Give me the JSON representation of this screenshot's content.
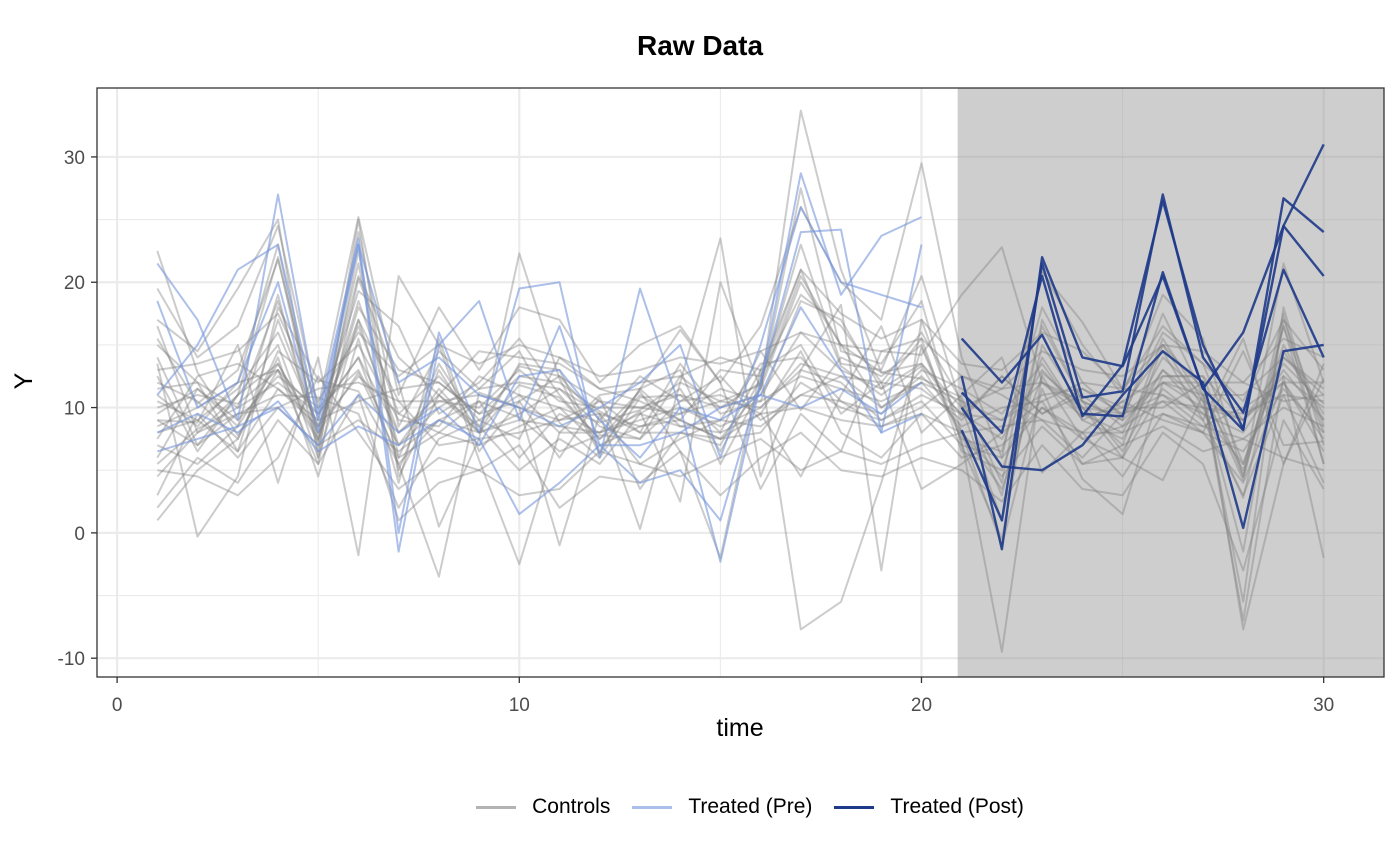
{
  "chart_data": {
    "type": "line",
    "title": "Raw Data",
    "xlabel": "time",
    "ylabel": "Y",
    "xlim": [
      -0.5,
      31.5
    ],
    "ylim": [
      -11.5,
      35.5
    ],
    "x_ticks": [
      0,
      10,
      20,
      30
    ],
    "x_tick_labels": [
      "0",
      "10",
      "20",
      "30"
    ],
    "y_ticks": [
      -10,
      0,
      10,
      20,
      30
    ],
    "y_tick_labels": [
      "-10",
      "0",
      "10",
      "20",
      "30"
    ],
    "grid": true,
    "shaded_region": {
      "x_start": 20.9,
      "x_end": 31.5,
      "color": "#cecece"
    },
    "legend": {
      "position": "bottom",
      "items": [
        {
          "label": "Controls",
          "color": "#b3b3b3"
        },
        {
          "label": "Treated (Pre)",
          "color": "#a9c0ec"
        },
        {
          "label": "Treated (Post)",
          "color": "#1e3a8a"
        }
      ]
    },
    "colors": {
      "control": "#808080",
      "treated_pre": "#7796dc",
      "treated_post": "#1e3a8a"
    },
    "x": [
      1,
      2,
      3,
      4,
      5,
      6,
      7,
      8,
      9,
      10,
      11,
      12,
      13,
      14,
      15,
      16,
      17,
      18,
      19,
      20,
      21,
      22,
      23,
      24,
      25,
      26,
      27,
      28,
      29,
      30
    ],
    "treatment_start": 21,
    "treated_units": [
      [
        21.5,
        17.0,
        9.0,
        27.0,
        9.5,
        23.5,
        0.0,
        16.0,
        8.0,
        19.5,
        20.0,
        6.0,
        19.5,
        10.0,
        -2.3,
        12.0,
        24.0,
        24.2,
        8.0,
        23.0,
        15.5,
        12.0,
        15.8,
        9.5,
        9.3,
        20.8,
        11.5,
        8.2,
        26.7,
        24.0
      ],
      [
        18.5,
        10.0,
        12.0,
        20.0,
        8.0,
        23.0,
        -1.5,
        15.0,
        18.5,
        9.0,
        16.5,
        7.0,
        4.0,
        5.0,
        1.0,
        12.0,
        28.7,
        19.0,
        23.7,
        25.2,
        11.2,
        8.0,
        20.5,
        9.3,
        13.4,
        26.5,
        15.0,
        8.3,
        24.5,
        20.5
      ],
      [
        11.0,
        15.0,
        21.0,
        23.0,
        9.0,
        23.0,
        12.0,
        14.0,
        11.0,
        10.0,
        8.5,
        10.0,
        12.0,
        15.0,
        6.0,
        15.0,
        26.0,
        20.0,
        19.0,
        18.0,
        8.2,
        1.0,
        21.5,
        10.8,
        11.3,
        27.0,
        14.0,
        9.6,
        21.0,
        14.0
      ],
      [
        8.0,
        9.5,
        8.0,
        10.5,
        6.5,
        8.5,
        7.0,
        9.0,
        7.5,
        1.5,
        4.0,
        7.0,
        7.0,
        8.0,
        10.0,
        11.0,
        18.0,
        13.0,
        8.0,
        9.5,
        10.0,
        5.3,
        5.0,
        7.0,
        11.0,
        14.5,
        12.0,
        0.4,
        14.5,
        15.0
      ],
      [
        6.5,
        7.5,
        8.5,
        10.0,
        7.0,
        11.0,
        8.0,
        10.0,
        7.0,
        12.5,
        13.0,
        9.0,
        6.0,
        10.0,
        9.0,
        11.0,
        10.0,
        11.5,
        9.5,
        12.0,
        12.5,
        -1.3,
        22.0,
        14.0,
        13.3,
        20.5,
        11.5,
        16.0,
        24.5,
        31.0
      ]
    ],
    "control_units": [
      [
        22.5,
        12.8,
        7.8,
        13.0,
        5.5,
        20.3,
        12.0,
        0.5,
        7.5,
        22.3,
        12.3,
        6.3,
        11.5,
        16.2,
        12.0,
        3.5,
        9.5,
        6.5,
        14.5,
        14.2,
        19.0,
        22.8,
        12.0,
        9.3,
        10.0,
        14.5,
        9.0,
        15.5,
        5.5,
        13.5
      ],
      [
        17.0,
        14.5,
        19.5,
        25.0,
        6.0,
        25.0,
        4.5,
        11.0,
        8.0,
        11.8,
        10.8,
        7.5,
        9.7,
        2.5,
        20.0,
        11.5,
        33.7,
        21.0,
        12.8,
        12.3,
        10.8,
        4.0,
        20.8,
        16.8,
        11.5,
        15.0,
        10.0,
        2.8,
        16.5,
        5.5
      ],
      [
        13.5,
        -0.3,
        4.5,
        18.0,
        12.2,
        11.3,
        5.5,
        -3.5,
        11.2,
        10.0,
        -1.0,
        9.5,
        0.3,
        12.0,
        23.5,
        4.5,
        13.0,
        18.2,
        -3.0,
        17.0,
        8.0,
        -1.0,
        11.5,
        4.3,
        1.5,
        12.0,
        12.0,
        -7.7,
        5.5,
        12.3
      ],
      [
        9.0,
        8.8,
        15.0,
        4.0,
        14.0,
        -1.8,
        20.5,
        15.0,
        5.8,
        -2.5,
        8.0,
        8.0,
        11.3,
        6.5,
        -2.0,
        13.0,
        -7.7,
        -5.5,
        4.0,
        14.8,
        7.3,
        -9.5,
        12.8,
        10.0,
        6.0,
        4.2,
        11.0,
        -7.0,
        12.5,
        -2.0
      ],
      [
        12.5,
        6.5,
        11.0,
        13.5,
        8.0,
        12.8,
        6.0,
        8.0,
        10.5,
        9.2,
        6.5,
        7.8,
        7.5,
        10.5,
        11.0,
        9.5,
        14.5,
        8.0,
        6.0,
        9.5,
        6.0,
        7.0,
        10.0,
        8.0,
        4.5,
        9.5,
        8.0,
        4.0,
        12.0,
        6.5
      ],
      [
        10.0,
        11.0,
        10.3,
        13.0,
        7.3,
        18.0,
        13.0,
        12.0,
        9.5,
        12.5,
        12.0,
        9.7,
        8.0,
        8.0,
        7.5,
        11.5,
        20.0,
        15.0,
        12.8,
        13.5,
        9.3,
        12.5,
        9.5,
        11.0,
        8.5,
        13.0,
        10.5,
        9.0,
        13.5,
        10.3
      ],
      [
        7.0,
        5.5,
        8.5,
        19.0,
        6.5,
        22.5,
        6.0,
        13.5,
        8.5,
        5.0,
        7.5,
        5.5,
        9.5,
        11.5,
        6.5,
        12.3,
        21.0,
        13.3,
        11.0,
        13.3,
        8.0,
        3.5,
        12.5,
        7.5,
        6.0,
        15.0,
        11.5,
        4.2,
        17.5,
        5.5
      ],
      [
        15.5,
        10.3,
        13.0,
        21.8,
        9.0,
        19.3,
        16.5,
        9.5,
        11.5,
        14.5,
        8.8,
        6.0,
        10.8,
        11.0,
        8.0,
        14.5,
        9.8,
        14.0,
        12.5,
        15.0,
        7.5,
        6.5,
        18.0,
        12.0,
        9.3,
        16.0,
        13.5,
        5.5,
        14.0,
        11.0
      ],
      [
        4.5,
        8.0,
        9.5,
        11.0,
        10.8,
        9.5,
        2.0,
        7.5,
        9.0,
        7.5,
        14.0,
        11.5,
        10.5,
        9.0,
        7.5,
        9.5,
        4.5,
        11.0,
        16.5,
        8.0,
        11.0,
        14.0,
        4.8,
        8.0,
        10.5,
        9.0,
        8.0,
        14.5,
        7.0,
        7.3
      ],
      [
        11.5,
        12.0,
        6.5,
        17.0,
        8.5,
        16.5,
        8.0,
        11.0,
        8.5,
        13.3,
        12.5,
        10.5,
        8.0,
        13.5,
        9.5,
        10.5,
        18.5,
        17.0,
        11.5,
        15.5,
        6.5,
        5.0,
        14.0,
        9.0,
        7.5,
        13.0,
        9.5,
        5.5,
        15.0,
        9.0
      ],
      [
        1.0,
        5.0,
        7.5,
        14.0,
        4.5,
        15.5,
        4.0,
        15.5,
        6.5,
        10.5,
        6.0,
        10.8,
        3.5,
        8.0,
        7.0,
        13.0,
        15.0,
        9.5,
        12.0,
        3.5,
        5.5,
        8.0,
        10.5,
        5.5,
        6.0,
        11.5,
        9.0,
        3.0,
        11.0,
        4.0
      ],
      [
        9.5,
        11.5,
        8.5,
        13.5,
        7.5,
        18.5,
        9.5,
        12.5,
        9.0,
        11.0,
        10.0,
        8.8,
        9.8,
        12.0,
        10.5,
        11.8,
        20.5,
        15.0,
        10.0,
        12.5,
        9.5,
        7.5,
        13.0,
        9.5,
        8.0,
        14.0,
        11.0,
        5.0,
        14.5,
        9.5
      ],
      [
        5.5,
        8.3,
        10.0,
        12.0,
        9.5,
        14.0,
        5.5,
        9.0,
        10.5,
        6.0,
        9.5,
        8.0,
        9.0,
        10.0,
        8.5,
        10.0,
        13.0,
        12.0,
        9.0,
        11.0,
        9.5,
        9.0,
        11.0,
        11.5,
        9.5,
        10.5,
        10.0,
        9.5,
        11.0,
        10.5
      ],
      [
        3.0,
        9.5,
        6.0,
        10.0,
        11.5,
        12.0,
        10.5,
        7.0,
        7.5,
        8.0,
        9.0,
        9.5,
        5.5,
        7.5,
        9.0,
        8.5,
        11.0,
        10.5,
        8.5,
        10.0,
        12.5,
        11.0,
        9.0,
        6.0,
        9.5,
        11.0,
        8.5,
        10.0,
        12.0,
        7.5
      ],
      [
        14.0,
        7.0,
        11.0,
        15.0,
        6.0,
        17.0,
        7.0,
        10.0,
        12.0,
        15.5,
        11.0,
        7.5,
        11.0,
        9.0,
        13.0,
        12.5,
        19.0,
        16.5,
        12.0,
        16.0,
        10.5,
        3.0,
        16.5,
        10.5,
        6.5,
        12.5,
        12.5,
        4.5,
        16.5,
        8.0
      ],
      [
        8.5,
        10.0,
        12.0,
        23.0,
        7.0,
        24.0,
        8.5,
        14.5,
        11.5,
        12.0,
        11.5,
        8.5,
        7.5,
        12.5,
        10.0,
        12.0,
        23.0,
        13.5,
        13.0,
        20.5,
        10.0,
        1.0,
        15.0,
        10.0,
        7.0,
        15.5,
        10.5,
        -1.5,
        17.0,
        8.5
      ],
      [
        10.5,
        9.0,
        11.5,
        16.0,
        8.5,
        17.0,
        10.5,
        10.5,
        10.0,
        13.0,
        10.5,
        10.0,
        10.0,
        11.0,
        10.0,
        11.0,
        16.0,
        13.0,
        11.5,
        13.5,
        10.0,
        11.5,
        12.0,
        10.0,
        9.5,
        12.0,
        11.0,
        11.0,
        14.0,
        11.5
      ],
      [
        6.0,
        11.5,
        9.0,
        12.5,
        10.0,
        13.0,
        7.0,
        11.5,
        8.0,
        9.5,
        11.5,
        9.5,
        8.5,
        9.5,
        11.5,
        10.5,
        12.5,
        11.5,
        10.5,
        12.0,
        8.5,
        10.0,
        10.5,
        12.0,
        11.5,
        11.0,
        9.5,
        8.0,
        13.0,
        9.0
      ],
      [
        12.0,
        10.5,
        7.5,
        14.5,
        12.0,
        15.0,
        9.0,
        8.5,
        12.5,
        11.0,
        8.0,
        11.0,
        11.5,
        8.5,
        9.0,
        13.5,
        14.0,
        10.5,
        9.5,
        13.0,
        11.5,
        9.5,
        13.5,
        9.0,
        10.5,
        12.5,
        12.5,
        9.0,
        12.0,
        12.0
      ],
      [
        7.5,
        12.5,
        13.5,
        11.5,
        9.0,
        10.5,
        11.5,
        12.0,
        9.5,
        10.5,
        12.5,
        9.0,
        12.5,
        10.5,
        12.5,
        9.0,
        11.0,
        12.5,
        12.0,
        11.5,
        9.0,
        12.5,
        9.5,
        11.5,
        10.0,
        10.0,
        12.0,
        12.0,
        10.5,
        11.0
      ],
      [
        16.5,
        8.0,
        11.0,
        22.0,
        7.5,
        21.5,
        5.0,
        13.0,
        8.0,
        13.5,
        13.0,
        6.5,
        11.5,
        13.0,
        5.5,
        11.5,
        27.5,
        14.5,
        13.5,
        18.5,
        7.0,
        -0.5,
        17.0,
        10.5,
        9.0,
        17.5,
        11.0,
        -5.5,
        18.0,
        7.0
      ],
      [
        5.0,
        4.5,
        3.0,
        6.0,
        12.5,
        8.0,
        3.5,
        6.0,
        5.0,
        3.0,
        3.5,
        6.5,
        5.5,
        4.5,
        6.0,
        7.5,
        5.0,
        6.5,
        5.5,
        7.0,
        8.0,
        4.5,
        8.5,
        5.5,
        7.0,
        8.5,
        6.5,
        7.5,
        6.0,
        5.0
      ],
      [
        13.0,
        13.5,
        14.5,
        17.5,
        10.5,
        16.0,
        12.5,
        15.0,
        13.5,
        15.0,
        14.0,
        12.5,
        13.0,
        14.0,
        13.5,
        14.5,
        16.0,
        15.0,
        14.5,
        15.5,
        12.5,
        11.5,
        14.5,
        13.0,
        12.5,
        15.0,
        14.5,
        12.0,
        15.5,
        14.0
      ],
      [
        9.0,
        7.0,
        9.5,
        10.0,
        7.0,
        9.0,
        6.5,
        9.0,
        8.0,
        9.0,
        8.5,
        8.0,
        9.5,
        8.5,
        8.0,
        9.5,
        10.0,
        9.0,
        8.5,
        9.5,
        8.0,
        8.5,
        9.0,
        8.0,
        8.0,
        9.5,
        8.5,
        7.5,
        10.0,
        8.5
      ],
      [
        2.0,
        6.0,
        4.0,
        9.0,
        5.5,
        11.0,
        1.0,
        4.0,
        5.0,
        7.0,
        2.0,
        4.5,
        4.0,
        6.5,
        3.0,
        6.0,
        8.0,
        5.0,
        4.5,
        6.0,
        5.0,
        2.5,
        7.0,
        3.5,
        3.0,
        8.0,
        5.5,
        -3.0,
        9.0,
        3.5
      ],
      [
        15.0,
        12.0,
        10.0,
        18.5,
        8.0,
        20.5,
        14.0,
        11.0,
        14.5,
        14.0,
        13.5,
        11.5,
        12.0,
        12.5,
        14.0,
        13.0,
        21.0,
        17.5,
        15.5,
        17.0,
        13.5,
        13.0,
        16.0,
        14.5,
        11.5,
        16.5,
        13.5,
        10.5,
        17.0,
        13.0
      ],
      [
        11.0,
        8.5,
        12.0,
        13.0,
        9.5,
        14.0,
        8.0,
        10.5,
        11.0,
        10.0,
        9.0,
        10.5,
        10.0,
        9.5,
        10.5,
        10.0,
        13.5,
        12.5,
        10.0,
        12.0,
        10.5,
        9.0,
        12.0,
        10.5,
        9.0,
        12.0,
        10.0,
        9.0,
        12.5,
        10.0
      ],
      [
        8.0,
        9.0,
        6.5,
        11.5,
        8.5,
        12.5,
        9.5,
        8.0,
        7.0,
        8.5,
        10.0,
        7.0,
        8.5,
        9.0,
        7.5,
        8.0,
        12.0,
        10.0,
        9.0,
        10.5,
        7.0,
        6.0,
        10.0,
        7.5,
        8.5,
        10.5,
        8.0,
        6.5,
        11.5,
        8.0
      ],
      [
        19.5,
        14.0,
        16.5,
        24.5,
        10.0,
        25.2,
        11.0,
        18.0,
        13.0,
        18.0,
        17.0,
        12.0,
        15.0,
        16.5,
        12.0,
        16.5,
        26.0,
        20.0,
        17.0,
        29.5,
        14.0,
        6.0,
        21.0,
        15.0,
        11.0,
        19.0,
        15.5,
        4.5,
        21.5,
        12.0
      ]
    ]
  }
}
